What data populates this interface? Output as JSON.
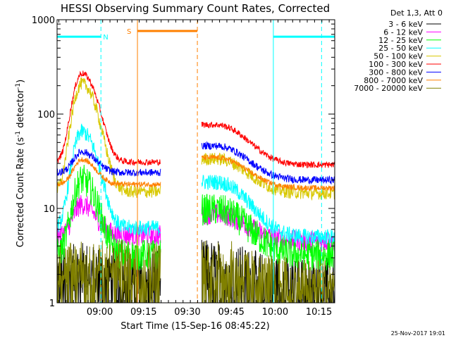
{
  "chart_data": {
    "type": "line",
    "title": "HESSI Observing Summary Count Rates, Corrected",
    "xlabel": "Start Time (15-Sep-16 08:45:22)",
    "ylabel": "Corrected Count Rate (s⁻¹ detector⁻¹)",
    "ylabel_main": "Corrected Count Rate (s",
    "ylabel_sup1": "-1",
    "ylabel_mid": " detector",
    "ylabel_sup2": "-1",
    "ylabel_end": ")",
    "yscale": "log",
    "ylim": [
      1,
      1000
    ],
    "y_ticks": [
      "1",
      "10",
      "100",
      "1000"
    ],
    "xlim_minutes": [
      0,
      95
    ],
    "x_ticks": [
      {
        "label": "09:00",
        "minute": 14.6
      },
      {
        "label": "09:15",
        "minute": 29.6
      },
      {
        "label": "09:30",
        "minute": 44.6
      },
      {
        "label": "09:45",
        "minute": 59.6
      },
      {
        "label": "10:00",
        "minute": 74.6
      },
      {
        "label": "10:15",
        "minute": 89.6
      }
    ],
    "legend_header": "Det 1,3, Att 0",
    "legend_position": "right",
    "series": [
      {
        "name": "3 - 6 keV",
        "color": "#000000",
        "base": 1.9,
        "peak": 2.2,
        "tail": 1.5,
        "tail_peak": 0.8,
        "noise": 0.55,
        "floor": 1
      },
      {
        "name": "6 - 12 keV",
        "color": "#ff00ff",
        "base": 5.2,
        "peak": 11,
        "tail": 4.5,
        "tail_peak": 4.2,
        "noise": 0.2,
        "floor": 1
      },
      {
        "name": "12 - 25 keV",
        "color": "#00ff00",
        "base": 3.2,
        "peak": 20,
        "tail": 3.2,
        "tail_peak": 6.5,
        "noise": 0.3,
        "floor": 1
      },
      {
        "name": "25 - 50 keV",
        "color": "#00ffff",
        "base": 6.2,
        "peak": 65,
        "tail": 5.0,
        "tail_peak": 14,
        "noise": 0.15,
        "floor": 1
      },
      {
        "name": "50 - 100 keV",
        "color": "#d8c800",
        "base": 15,
        "peak": 210,
        "tail": 14.5,
        "tail_peak": 19,
        "noise": 0.12,
        "floor": 1
      },
      {
        "name": "100 - 300 keV",
        "color": "#ff0000",
        "base": 31,
        "peak": 270,
        "tail": 29,
        "tail_peak": 48,
        "noise": 0.06,
        "floor": 1
      },
      {
        "name": "300 - 800 keV",
        "color": "#0000ff",
        "base": 24,
        "peak": 40,
        "tail": 20,
        "tail_peak": 26,
        "noise": 0.07,
        "floor": 1
      },
      {
        "name": "800 - 7000 keV",
        "color": "#ff8000",
        "base": 18,
        "peak": 33,
        "tail": 16.5,
        "tail_peak": 18,
        "noise": 0.05,
        "floor": 1
      },
      {
        "name": "7000 - 20000 keV",
        "color": "#808000",
        "base": 2.4,
        "peak": 2.6,
        "tail": 1.6,
        "tail_peak": 0.9,
        "noise": 0.5,
        "floor": 1
      }
    ],
    "segments_minutes": [
      [
        0,
        35.5
      ],
      [
        49.5,
        95
      ]
    ],
    "flare_peaks_minutes": {
      "first": 8.5,
      "second": 54.5
    },
    "annotations": {
      "night_marker": {
        "label": "N",
        "color": "#00ffff",
        "level": 660
      },
      "saa_marker": {
        "label": "S",
        "color": "#ff8000",
        "level": 760
      },
      "night_intervals_minutes": [
        [
          0,
          15
        ],
        [
          74,
          95
        ]
      ],
      "saa_interval_minutes": [
        27.5,
        48
      ],
      "solid_lines_minutes": [
        {
          "minute": 27.5,
          "color": "#ff8000"
        },
        {
          "minute": 74,
          "color": "#00ffff"
        }
      ],
      "dashed_lines_minutes": [
        {
          "minute": 15,
          "color": "#00ffff"
        },
        {
          "minute": 48,
          "color": "#ff8000"
        },
        {
          "minute": 90.5,
          "color": "#00ffff"
        }
      ]
    },
    "footer_date": "25-Nov-2017 19:01"
  }
}
